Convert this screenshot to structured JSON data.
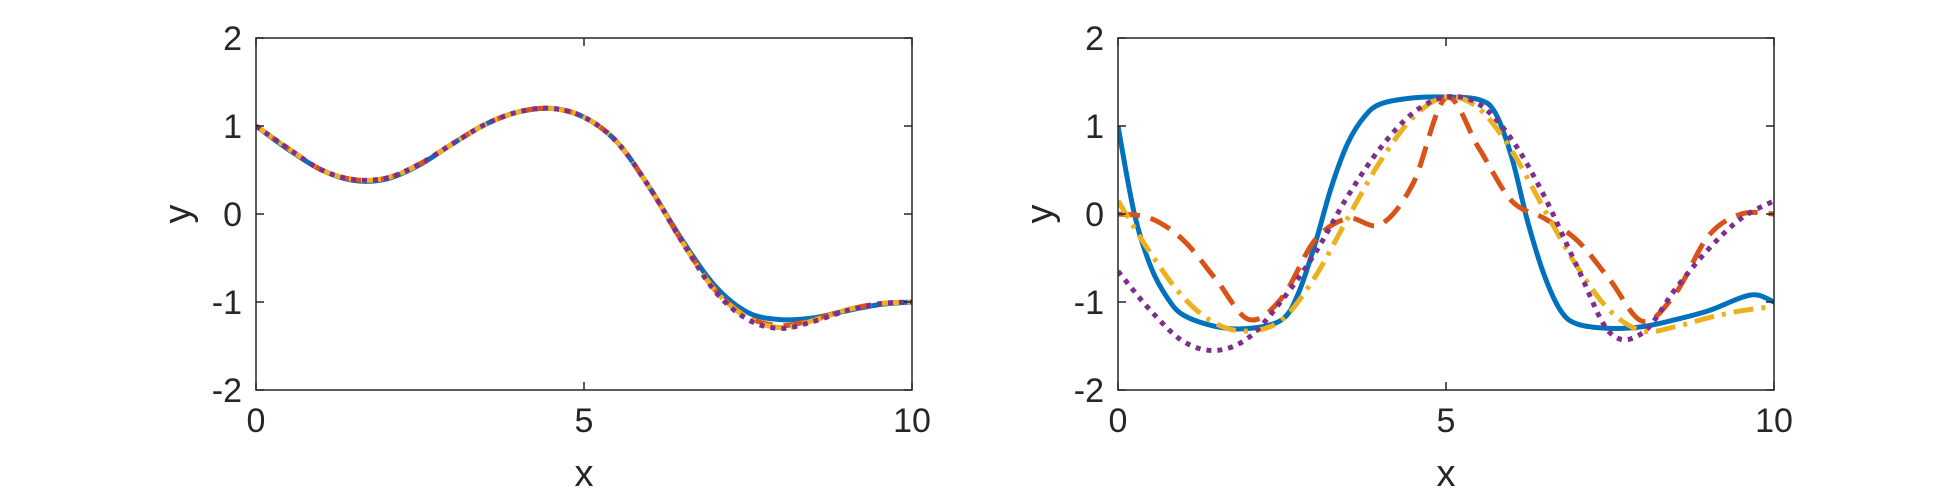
{
  "colors": {
    "blue": "#0072BD",
    "orange": "#D95319",
    "yellow": "#EDB120",
    "purple": "#7E2F8E",
    "axis": "#262626"
  },
  "chart_data": [
    {
      "type": "line",
      "xlabel": "x",
      "ylabel": "y",
      "xlim": [
        0,
        10
      ],
      "ylim": [
        -2,
        2
      ],
      "xticks": [
        "0",
        "5",
        "10"
      ],
      "yticks": [
        "2",
        "1",
        "0",
        "-1",
        "-2"
      ],
      "grid": false,
      "legend": "none",
      "series": [
        {
          "style": "solid",
          "color": "#0072BD",
          "x": [
            0,
            0.5,
            1,
            1.5,
            2,
            2.5,
            3,
            3.5,
            4,
            4.5,
            5,
            5.5,
            6,
            6.5,
            7,
            7.5,
            8,
            8.5,
            9,
            9.5,
            10
          ],
          "y": [
            1.0,
            0.73,
            0.5,
            0.38,
            0.4,
            0.56,
            0.8,
            1.02,
            1.16,
            1.2,
            1.1,
            0.82,
            0.3,
            -0.3,
            -0.82,
            -1.12,
            -1.2,
            -1.18,
            -1.1,
            -1.03,
            -1.0
          ]
        },
        {
          "style": "dashed",
          "color": "#D95319",
          "x": [
            0,
            0.5,
            1,
            1.5,
            2,
            2.5,
            3,
            3.5,
            4,
            4.5,
            5,
            5.5,
            6,
            6.5,
            7,
            7.5,
            8,
            8.5,
            9,
            9.5,
            10
          ],
          "y": [
            1.0,
            0.74,
            0.5,
            0.39,
            0.41,
            0.57,
            0.8,
            1.02,
            1.16,
            1.2,
            1.1,
            0.82,
            0.3,
            -0.32,
            -0.86,
            -1.17,
            -1.27,
            -1.2,
            -1.09,
            -1.02,
            -1.0
          ]
        },
        {
          "style": "dashdot",
          "color": "#EDB120",
          "x": [
            0,
            0.5,
            1,
            1.5,
            2,
            2.5,
            3,
            3.5,
            4,
            4.5,
            5,
            5.5,
            6,
            6.5,
            7,
            7.5,
            8,
            8.5,
            9,
            9.5,
            10
          ],
          "y": [
            1.0,
            0.74,
            0.5,
            0.39,
            0.41,
            0.57,
            0.8,
            1.02,
            1.16,
            1.2,
            1.1,
            0.82,
            0.3,
            -0.32,
            -0.87,
            -1.18,
            -1.29,
            -1.21,
            -1.09,
            -1.02,
            -1.0
          ]
        },
        {
          "style": "dotted",
          "color": "#7E2F8E",
          "x": [
            0,
            0.5,
            1,
            1.5,
            2,
            2.5,
            3,
            3.5,
            4,
            4.5,
            5,
            5.5,
            6,
            6.5,
            7,
            7.5,
            8,
            8.5,
            9,
            9.5,
            10
          ],
          "y": [
            1.0,
            0.74,
            0.5,
            0.39,
            0.41,
            0.57,
            0.8,
            1.02,
            1.16,
            1.2,
            1.1,
            0.82,
            0.3,
            -0.32,
            -0.88,
            -1.2,
            -1.3,
            -1.22,
            -1.1,
            -1.02,
            -1.0
          ]
        }
      ]
    },
    {
      "type": "line",
      "xlabel": "x",
      "ylabel": "y",
      "xlim": [
        0,
        10
      ],
      "ylim": [
        -2,
        2
      ],
      "xticks": [
        "0",
        "5",
        "10"
      ],
      "yticks": [
        "2",
        "1",
        "0",
        "-1",
        "-2"
      ],
      "grid": false,
      "legend": "none",
      "series": [
        {
          "style": "solid",
          "color": "#0072BD",
          "x": [
            0,
            0.25,
            0.5,
            0.75,
            1,
            1.5,
            2,
            2.5,
            2.75,
            3,
            3.25,
            3.5,
            3.75,
            4,
            4.5,
            5,
            5.5,
            5.75,
            6,
            6.25,
            6.5,
            6.75,
            7,
            7.5,
            8,
            8.5,
            9,
            9.5,
            9.75,
            10
          ],
          "y": [
            1.0,
            0.0,
            -0.6,
            -0.95,
            -1.15,
            -1.28,
            -1.3,
            -1.2,
            -0.9,
            -0.35,
            0.3,
            0.8,
            1.1,
            1.25,
            1.32,
            1.33,
            1.3,
            1.15,
            0.65,
            -0.1,
            -0.7,
            -1.1,
            -1.25,
            -1.3,
            -1.28,
            -1.2,
            -1.1,
            -0.95,
            -0.92,
            -1.0
          ]
        },
        {
          "style": "dashed",
          "color": "#D95319",
          "x": [
            0,
            0.5,
            1,
            1.5,
            2,
            2.5,
            3,
            3.5,
            4,
            4.5,
            5,
            5.5,
            6,
            6.5,
            7,
            7.5,
            8,
            8.5,
            9,
            9.5,
            10
          ],
          "y": [
            0.0,
            -0.05,
            -0.3,
            -0.75,
            -1.2,
            -0.95,
            -0.3,
            -0.05,
            -0.12,
            0.35,
            1.32,
            0.75,
            0.15,
            -0.05,
            -0.3,
            -0.75,
            -1.22,
            -0.9,
            -0.25,
            0.0,
            0.0
          ]
        },
        {
          "style": "dashdot",
          "color": "#EDB120",
          "x": [
            0,
            0.5,
            1,
            1.5,
            2,
            2.5,
            3,
            3.5,
            4,
            4.5,
            5,
            5.5,
            6,
            6.5,
            7,
            7.5,
            8,
            8.5,
            9,
            9.5,
            10
          ],
          "y": [
            0.15,
            -0.45,
            -0.95,
            -1.25,
            -1.33,
            -1.2,
            -0.72,
            -0.05,
            0.6,
            1.1,
            1.33,
            1.2,
            0.72,
            0.05,
            -0.6,
            -1.1,
            -1.33,
            -1.28,
            -1.18,
            -1.1,
            -1.05
          ]
        },
        {
          "style": "dotted",
          "color": "#7E2F8E",
          "x": [
            0,
            0.5,
            1,
            1.5,
            2,
            2.5,
            3,
            3.5,
            4,
            4.5,
            5,
            5.5,
            6,
            6.5,
            7,
            7.5,
            8,
            8.5,
            9,
            9.5,
            10
          ],
          "y": [
            -0.65,
            -1.1,
            -1.45,
            -1.55,
            -1.4,
            -0.98,
            -0.45,
            0.2,
            0.75,
            1.15,
            1.33,
            1.25,
            0.85,
            0.2,
            -0.6,
            -1.35,
            -1.35,
            -0.85,
            -0.4,
            -0.05,
            0.15
          ]
        }
      ]
    }
  ]
}
